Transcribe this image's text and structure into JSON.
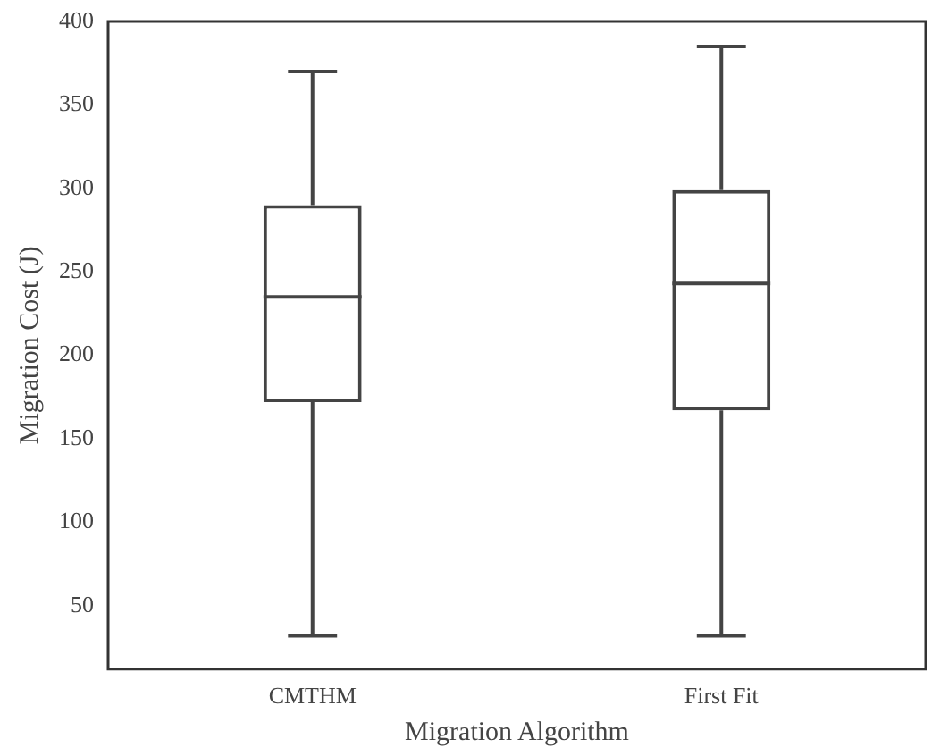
{
  "chart_data": {
    "type": "box",
    "xlabel": "Migration Algorithm",
    "ylabel": "Migration Cost (J)",
    "categories": [
      "CMTHM",
      "First Fit"
    ],
    "boxes": [
      {
        "low": 32,
        "q1": 172,
        "median": 235,
        "q3": 290,
        "high": 370
      },
      {
        "low": 32,
        "q1": 167,
        "median": 243,
        "q3": 299,
        "high": 385
      }
    ],
    "color": "#444444",
    "ylim": [
      12,
      400
    ],
    "yticks": [
      50,
      100,
      150,
      200,
      250,
      300,
      350,
      400
    ],
    "grid": false,
    "legend": false
  }
}
